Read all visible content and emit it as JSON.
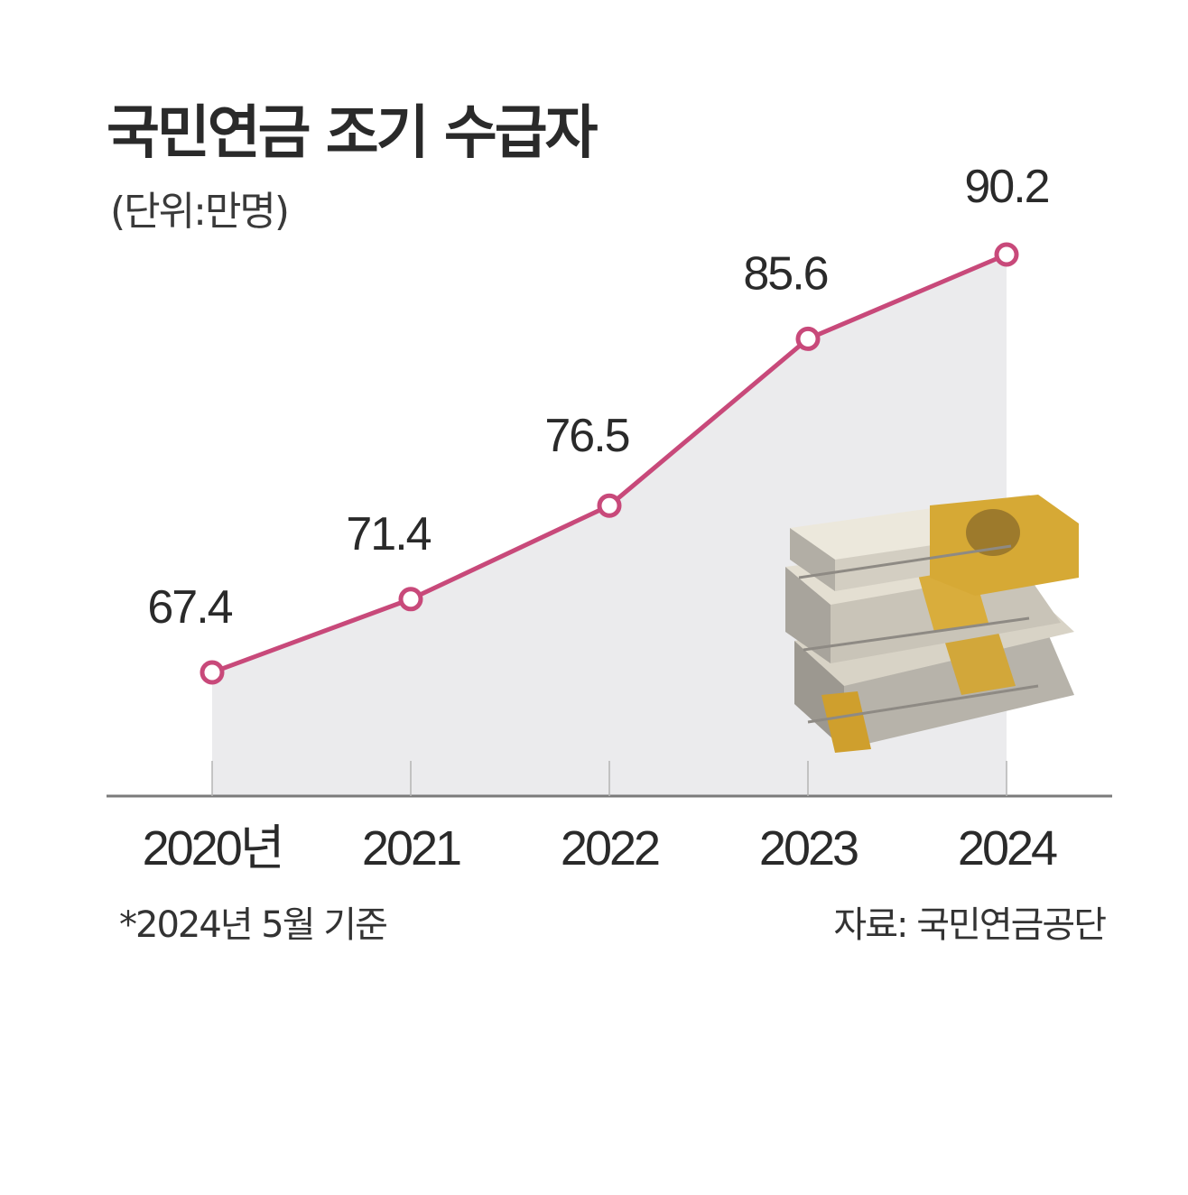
{
  "title": "국민연금 조기 수급자",
  "unit": "(단위:만명)",
  "footnote": "*2024년 5월 기준",
  "source": "자료: 국민연금공단",
  "colors": {
    "line": "#c8497a",
    "area": "#ebebed",
    "axis": "#7a7a7a",
    "text": "#2a2a2a"
  },
  "icon": "money-stack-icon",
  "chart_data": {
    "type": "area",
    "categories": [
      "2020년",
      "2021",
      "2022",
      "2023",
      "2024"
    ],
    "series": [
      {
        "values": [
          67.4,
          71.4,
          76.5,
          85.6,
          90.2
        ],
        "labels": [
          "67.4",
          "71.4",
          "76.5",
          "85.6",
          "90.2"
        ]
      }
    ],
    "title": "국민연금 조기 수급자",
    "unit": "(단위:만명)",
    "ylim": [
      60,
      95
    ],
    "grid": false,
    "legend": "none"
  }
}
